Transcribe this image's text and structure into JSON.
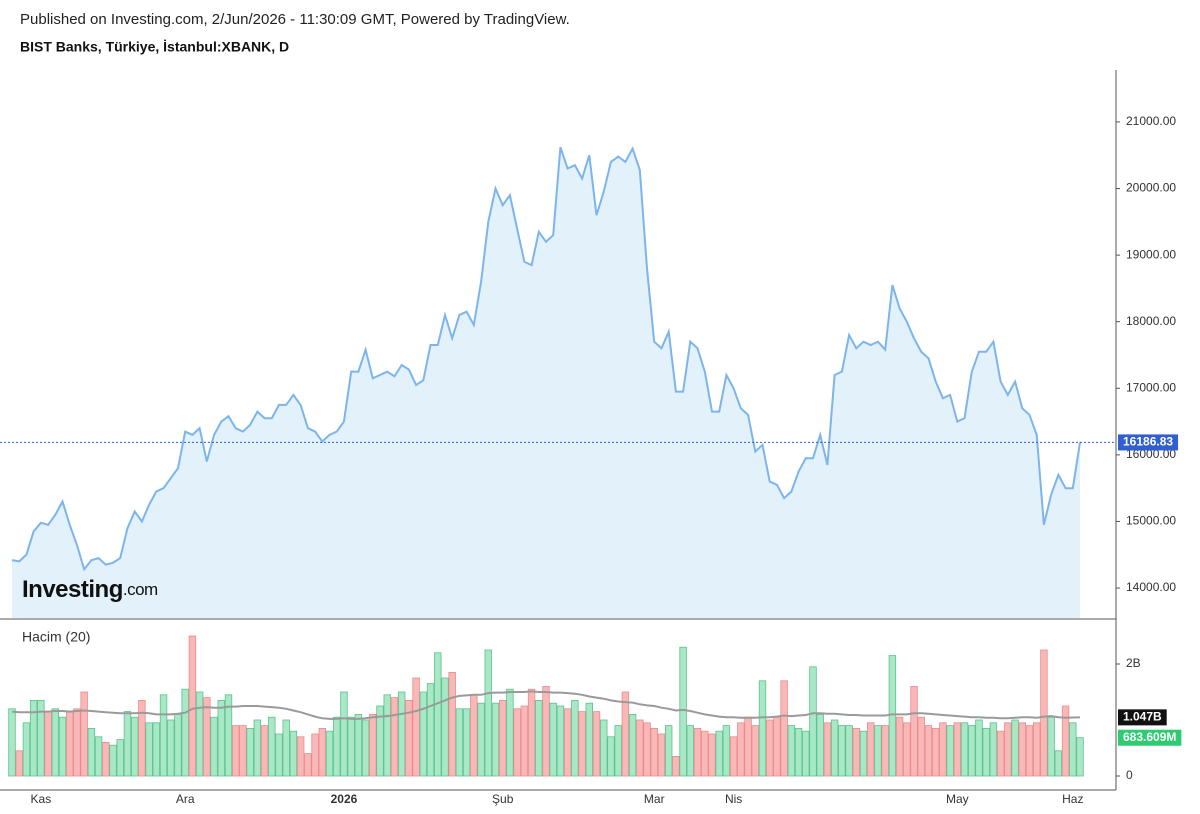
{
  "source": "Published on Investing.com, 2/Jun/2026 - 11:30:09 GMT, Powered by TradingView.",
  "logo": {
    "name": "Investing",
    "suffix": ".com"
  },
  "chart_data": [
    {
      "type": "area",
      "title": "BIST Banks, Türkiye, İstanbul:XBANK, D",
      "color": "#7cb5ec",
      "fill": "#e3f1fa",
      "last_line_color": "#2f5fd0",
      "values": [
        14420,
        14400,
        14500,
        14850,
        14980,
        14950,
        15100,
        15300,
        14950,
        14650,
        14280,
        14420,
        14450,
        14350,
        14380,
        14450,
        14900,
        15150,
        15000,
        15250,
        15450,
        15500,
        15650,
        15800,
        16350,
        16300,
        16400,
        15900,
        16300,
        16500,
        16580,
        16400,
        16350,
        16450,
        16650,
        16550,
        16550,
        16750,
        16750,
        16900,
        16750,
        16400,
        16350,
        16200,
        16300,
        16350,
        16500,
        17250,
        17250,
        17580,
        17150,
        17200,
        17250,
        17180,
        17350,
        17280,
        17050,
        17120,
        17650,
        17650,
        18100,
        17750,
        18100,
        18150,
        17950,
        18600,
        19500,
        20000,
        19750,
        19900,
        19400,
        18900,
        18850,
        19350,
        19200,
        19300,
        20620,
        20300,
        20350,
        20150,
        20500,
        19600,
        19950,
        20400,
        20480,
        20400,
        20600,
        20280,
        18800,
        17700,
        17600,
        17850,
        16950,
        16950,
        17700,
        17600,
        17250,
        16650,
        16650,
        17200,
        17000,
        16700,
        16600,
        16050,
        16150,
        15600,
        15550,
        15350,
        15450,
        15750,
        15950,
        15950,
        16300,
        15850,
        17200,
        17250,
        17800,
        17600,
        17700,
        17650,
        17700,
        17580,
        18550,
        18200,
        18000,
        17750,
        17550,
        17450,
        17100,
        16850,
        16900,
        16500,
        16550,
        17250,
        17550,
        17550,
        17700,
        17100,
        16900,
        17100,
        16700,
        16600,
        16300,
        14950,
        15400,
        15700,
        15500,
        15500,
        16186.83
      ],
      "ylim": [
        13550,
        21780
      ],
      "yticks": [
        {
          "value": 14000,
          "label": "14000.00"
        },
        {
          "value": 15000,
          "label": "15000.00"
        },
        {
          "value": 16000,
          "label": "16000.00"
        },
        {
          "value": 17000,
          "label": "17000.00"
        },
        {
          "value": 18000,
          "label": "18000.00"
        },
        {
          "value": 19000,
          "label": "19000.00"
        },
        {
          "value": 20000,
          "label": "20000.00"
        },
        {
          "value": 21000,
          "label": "21000.00"
        }
      ]
    },
    {
      "type": "bar",
      "title": "Hacim (20)",
      "categories": [
        null,
        null,
        null,
        null,
        "Kas",
        null,
        null,
        null,
        null,
        null,
        null,
        null,
        null,
        null,
        null,
        null,
        null,
        null,
        null,
        null,
        null,
        null,
        null,
        null,
        "Ara",
        null,
        null,
        null,
        null,
        null,
        null,
        null,
        null,
        null,
        null,
        null,
        null,
        null,
        null,
        null,
        null,
        null,
        null,
        null,
        null,
        null,
        "2026",
        null,
        null,
        null,
        null,
        null,
        null,
        null,
        null,
        null,
        null,
        null,
        null,
        null,
        null,
        null,
        null,
        null,
        null,
        null,
        null,
        null,
        "Şub",
        null,
        null,
        null,
        null,
        null,
        null,
        null,
        null,
        null,
        null,
        null,
        null,
        null,
        null,
        null,
        null,
        null,
        null,
        null,
        null,
        "Mar",
        null,
        null,
        null,
        null,
        null,
        null,
        null,
        null,
        null,
        null,
        "Nis",
        null,
        null,
        null,
        null,
        null,
        null,
        null,
        null,
        null,
        null,
        null,
        null,
        null,
        null,
        null,
        null,
        null,
        null,
        null,
        null,
        null,
        null,
        null,
        null,
        null,
        null,
        null,
        null,
        null,
        null,
        "May",
        null,
        null,
        null,
        null,
        null,
        null,
        null,
        null,
        null,
        null,
        null,
        null,
        null,
        null,
        null,
        "Haz",
        null
      ],
      "series": [
        {
          "up_color": "#a8e8c6",
          "up_edge": "#5cc28c",
          "down_color": "#f9b8b8",
          "down_edge": "#ec8a8a",
          "values": [
            1.2,
            0.45,
            0.95,
            1.35,
            1.35,
            1.15,
            1.2,
            1.05,
            1.15,
            1.2,
            1.5,
            0.85,
            0.7,
            0.6,
            0.55,
            0.65,
            1.15,
            1.05,
            1.35,
            0.95,
            0.95,
            1.45,
            1.0,
            1.1,
            1.55,
            2.5,
            1.5,
            1.4,
            1.05,
            1.35,
            1.45,
            0.9,
            0.9,
            0.85,
            1.0,
            0.9,
            1.05,
            0.75,
            1.0,
            0.8,
            0.7,
            0.4,
            0.75,
            0.85,
            0.8,
            1.05,
            1.5,
            1.05,
            1.1,
            1.0,
            1.1,
            1.25,
            1.45,
            1.4,
            1.5,
            1.35,
            1.75,
            1.5,
            1.65,
            2.2,
            1.75,
            1.85,
            1.2,
            1.2,
            1.45,
            1.3,
            2.25,
            1.3,
            1.35,
            1.55,
            1.2,
            1.25,
            1.55,
            1.35,
            1.6,
            1.3,
            1.25,
            1.2,
            1.35,
            1.15,
            1.3,
            1.15,
            1.0,
            0.7,
            0.9,
            1.5,
            1.1,
            1.0,
            0.95,
            0.85,
            0.75,
            0.9,
            0.35,
            2.3,
            0.9,
            0.85,
            0.8,
            0.75,
            0.8,
            0.9,
            0.7,
            0.95,
            1.05,
            0.9,
            1.7,
            1.0,
            1.05,
            1.7,
            0.9,
            0.85,
            0.8,
            1.95,
            1.1,
            0.95,
            1.0,
            0.9,
            0.9,
            0.85,
            0.8,
            0.95,
            0.9,
            0.9,
            2.15,
            1.05,
            0.95,
            1.6,
            1.05,
            0.9,
            0.85,
            0.95,
            0.9,
            0.95,
            0.95,
            0.9,
            1.0,
            0.85,
            0.95,
            0.8,
            0.95,
            1.0,
            0.95,
            0.9,
            0.95,
            2.25,
            1.05,
            0.45,
            1.25,
            0.95,
            0.683609
          ],
          "value_labels": [
            null,
            null,
            null,
            null,
            null,
            null,
            null,
            null,
            null,
            null,
            null,
            null,
            null,
            null,
            null,
            null,
            null,
            null,
            null,
            null,
            null,
            null,
            null,
            null,
            null,
            null,
            null,
            null,
            null,
            null,
            null,
            null,
            null,
            null,
            null,
            null,
            null,
            null,
            null,
            null,
            null,
            null,
            null,
            null,
            null,
            null,
            null,
            null,
            null,
            null,
            null,
            null,
            null,
            null,
            null,
            null,
            null,
            null,
            null,
            null,
            null,
            null,
            null,
            null,
            null,
            null,
            null,
            null,
            null,
            null,
            null,
            null,
            null,
            null,
            null,
            null,
            null,
            null,
            null,
            null,
            null,
            null,
            null,
            null,
            null,
            null,
            null,
            null,
            null,
            null,
            null,
            null,
            null,
            null,
            null,
            null,
            null,
            null,
            null,
            null,
            null,
            null,
            null,
            null,
            null,
            null,
            null,
            null,
            null,
            null,
            null,
            null,
            null,
            null,
            null,
            null,
            null,
            null,
            null,
            null,
            null,
            null,
            null,
            null,
            null,
            null,
            null,
            null,
            null,
            null,
            null,
            null,
            null,
            null,
            null,
            null,
            null,
            null,
            null,
            null,
            null,
            null,
            null,
            null,
            null,
            null,
            null,
            null,
            "683.609M"
          ]
        },
        {
          "type": "line",
          "color": "#9a9a9a",
          "values": [
            1.15,
            1.14,
            1.14,
            1.14,
            1.15,
            1.15,
            1.16,
            1.16,
            1.15,
            1.16,
            1.17,
            1.16,
            1.15,
            1.14,
            1.13,
            1.12,
            1.12,
            1.12,
            1.13,
            1.12,
            1.1,
            1.1,
            1.1,
            1.11,
            1.13,
            1.2,
            1.22,
            1.23,
            1.22,
            1.22,
            1.24,
            1.24,
            1.25,
            1.25,
            1.25,
            1.24,
            1.23,
            1.22,
            1.2,
            1.17,
            1.14,
            1.1,
            1.06,
            1.03,
            1.02,
            1.02,
            1.03,
            1.02,
            1.02,
            1.03,
            1.05,
            1.06,
            1.07,
            1.09,
            1.11,
            1.13,
            1.16,
            1.2,
            1.25,
            1.3,
            1.35,
            1.4,
            1.43,
            1.44,
            1.45,
            1.45,
            1.48,
            1.49,
            1.49,
            1.5,
            1.5,
            1.5,
            1.51,
            1.5,
            1.5,
            1.49,
            1.49,
            1.48,
            1.47,
            1.45,
            1.42,
            1.4,
            1.38,
            1.35,
            1.33,
            1.32,
            1.31,
            1.28,
            1.26,
            1.25,
            1.22,
            1.2,
            1.17,
            1.18,
            1.16,
            1.13,
            1.1,
            1.08,
            1.06,
            1.05,
            1.05,
            1.04,
            1.04,
            1.04,
            1.05,
            1.05,
            1.06,
            1.08,
            1.07,
            1.08,
            1.09,
            1.12,
            1.12,
            1.11,
            1.11,
            1.1,
            1.09,
            1.09,
            1.08,
            1.08,
            1.08,
            1.08,
            1.1,
            1.1,
            1.1,
            1.12,
            1.12,
            1.11,
            1.1,
            1.09,
            1.08,
            1.07,
            1.06,
            1.05,
            1.05,
            1.04,
            1.04,
            1.03,
            1.03,
            1.04,
            1.05,
            1.05,
            1.04,
            1.06,
            1.07,
            1.05,
            1.04,
            1.045,
            1.047
          ],
          "value_labels": [
            null,
            null,
            null,
            null,
            null,
            null,
            null,
            null,
            null,
            null,
            null,
            null,
            null,
            null,
            null,
            null,
            null,
            null,
            null,
            null,
            null,
            null,
            null,
            null,
            null,
            null,
            null,
            null,
            null,
            null,
            null,
            null,
            null,
            null,
            null,
            null,
            null,
            null,
            null,
            null,
            null,
            null,
            null,
            null,
            null,
            null,
            null,
            null,
            null,
            null,
            null,
            null,
            null,
            null,
            null,
            null,
            null,
            null,
            null,
            null,
            null,
            null,
            null,
            null,
            null,
            null,
            null,
            null,
            null,
            null,
            null,
            null,
            null,
            null,
            null,
            null,
            null,
            null,
            null,
            null,
            null,
            null,
            null,
            null,
            null,
            null,
            null,
            null,
            null,
            null,
            null,
            null,
            null,
            null,
            null,
            null,
            null,
            null,
            null,
            null,
            null,
            null,
            null,
            null,
            null,
            null,
            null,
            null,
            null,
            null,
            null,
            null,
            null,
            null,
            null,
            null,
            null,
            null,
            null,
            null,
            null,
            null,
            null,
            null,
            null,
            null,
            null,
            null,
            null,
            null,
            null,
            null,
            null,
            null,
            null,
            null,
            null,
            null,
            null,
            null,
            null,
            null,
            null,
            null,
            null,
            null,
            null,
            null,
            "1.047B"
          ]
        }
      ],
      "ylim": [
        -0.25,
        2.75
      ],
      "yticks": [
        0,
        {
          "value": 2,
          "label": "2B"
        }
      ]
    }
  ]
}
